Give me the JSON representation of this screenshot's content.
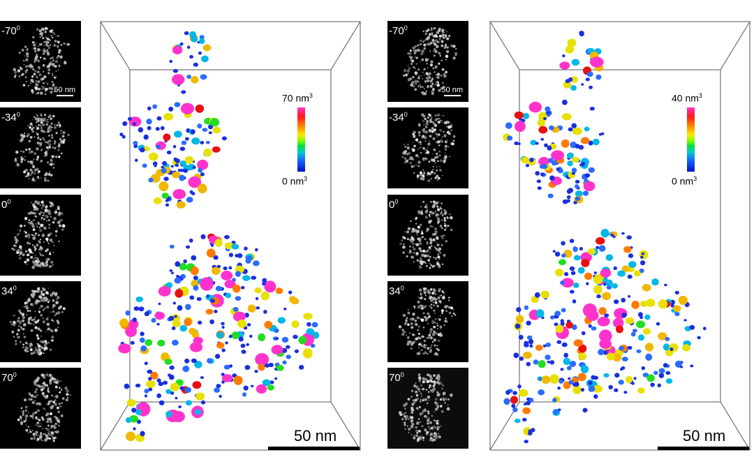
{
  "left": {
    "tilts": [
      "-70",
      "-34",
      "0",
      "34",
      "70"
    ],
    "tilt_unit": "0",
    "small_scale": "50 nm",
    "colorbar": {
      "max": "70 nm",
      "min": "0 nm",
      "exp": "3"
    },
    "big_scale": "50 nm"
  },
  "right": {
    "tilts": [
      "-70",
      "-34",
      "0",
      "34",
      "70"
    ],
    "tilt_unit": "0",
    "small_scale": "50 nm",
    "colorbar": {
      "max": "40 nm",
      "min": "0 nm",
      "exp": "3"
    },
    "big_scale": "50 nm"
  },
  "colors": {
    "particle_palette": [
      "#1a2ee0",
      "#2a6cff",
      "#00b7e6",
      "#e8e000",
      "#f0b800",
      "#ff7a00",
      "#e81010",
      "#ff33cc",
      "#22dd22"
    ]
  }
}
